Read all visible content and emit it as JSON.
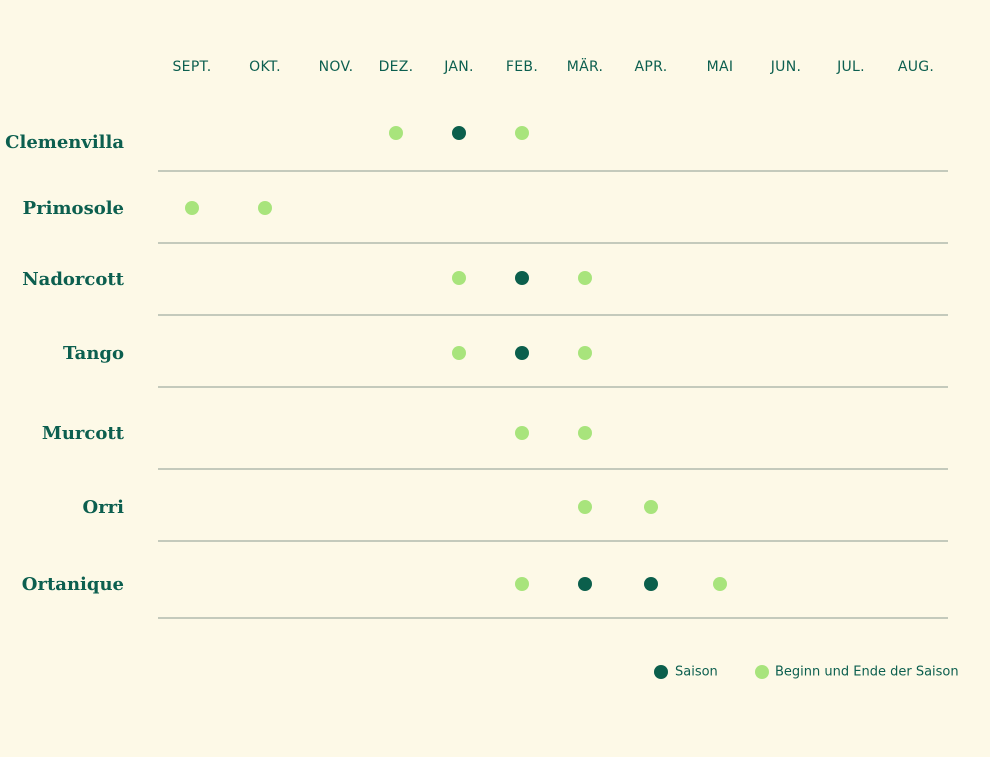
{
  "colors": {
    "background": "#fdf9e7",
    "text": "#0c5f4f",
    "season": "#0b5f4c",
    "begin_end": "#a8e47c",
    "divider": "#8a9a90"
  },
  "chart_data": {
    "type": "scatter",
    "months": [
      "SEPT.",
      "OKT.",
      "NOV.",
      "DEZ.",
      "JAN.",
      "FEB.",
      "MÄR.",
      "APR.",
      "MAI",
      "JUN.",
      "JUL.",
      "AUG."
    ],
    "varieties": [
      {
        "name": "Clemenvilla",
        "begin_end": [
          "DEZ.",
          "FEB."
        ],
        "season": [
          "JAN."
        ]
      },
      {
        "name": "Primosole",
        "begin_end": [
          "SEPT.",
          "OKT."
        ],
        "season": []
      },
      {
        "name": "Nadorcott",
        "begin_end": [
          "JAN.",
          "MÄR."
        ],
        "season": [
          "FEB."
        ]
      },
      {
        "name": "Tango",
        "begin_end": [
          "JAN.",
          "MÄR."
        ],
        "season": [
          "FEB."
        ]
      },
      {
        "name": "Murcott",
        "begin_end": [
          "FEB.",
          "MÄR."
        ],
        "season": []
      },
      {
        "name": "Orri",
        "begin_end": [
          "MÄR.",
          "APR."
        ],
        "season": []
      },
      {
        "name": "Ortanique",
        "begin_end": [
          "FEB.",
          "MAI"
        ],
        "season": [
          "MÄR.",
          "APR."
        ]
      }
    ],
    "legend": [
      {
        "key": "season",
        "label": "Saison"
      },
      {
        "key": "begin_end",
        "label": "Beginn und Ende der Saison"
      }
    ],
    "legend_position": "bottom-right",
    "grid": "horizontal row dividers"
  }
}
